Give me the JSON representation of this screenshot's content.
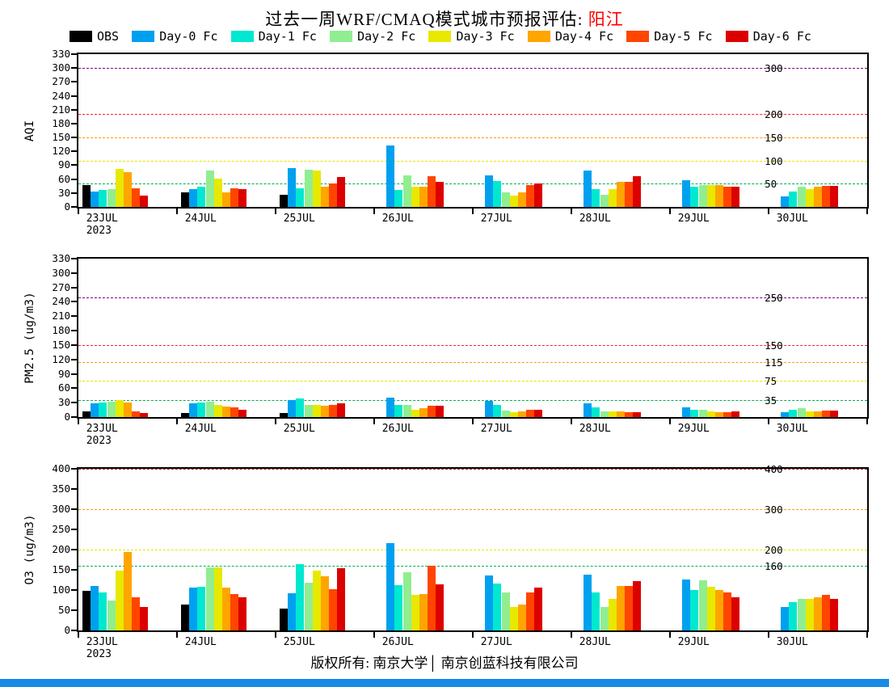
{
  "title": {
    "prefix": "过去一周WRF/CMAQ模式城市预报评估: ",
    "city": "阳江"
  },
  "footer": "版权所有: 南京大学│ 南京创蓝科技有限公司",
  "accent_colors": {
    "bottom_strip": "#1789e6",
    "city_name": "#ff0000"
  },
  "legend": [
    {
      "label": "OBS",
      "color": "#000000"
    },
    {
      "label": "Day-0 Fc",
      "color": "#00a0f0"
    },
    {
      "label": "Day-1 Fc",
      "color": "#00e8d0"
    },
    {
      "label": "Day-2 Fc",
      "color": "#90ee90"
    },
    {
      "label": "Day-3 Fc",
      "color": "#e8e800"
    },
    {
      "label": "Day-4 Fc",
      "color": "#ffa500"
    },
    {
      "label": "Day-5 Fc",
      "color": "#ff4500"
    },
    {
      "label": "Day-6 Fc",
      "color": "#dc0000"
    }
  ],
  "chart_data": [
    {
      "type": "bar",
      "title": "AQI",
      "ylabel": "AQI",
      "ylim": [
        0,
        330
      ],
      "ytick_step": 30,
      "grid": false,
      "legend_position": "top",
      "categories": [
        "23JUL\n2023",
        "24JUL",
        "25JUL",
        "26JUL",
        "27JUL",
        "28JUL",
        "29JUL",
        "30JUL"
      ],
      "series": [
        {
          "name": "OBS",
          "values": [
            48,
            32,
            26,
            null,
            null,
            null,
            null,
            null
          ]
        },
        {
          "name": "Day-0 Fc",
          "values": [
            34,
            38,
            84,
            133,
            68,
            79,
            58,
            22
          ]
        },
        {
          "name": "Day-1 Fc",
          "values": [
            36,
            44,
            41,
            36,
            56,
            38,
            44,
            34
          ]
        },
        {
          "name": "Day-2 Fc",
          "values": [
            38,
            79,
            80,
            68,
            31,
            26,
            48,
            43
          ]
        },
        {
          "name": "Day-3 Fc",
          "values": [
            82,
            62,
            79,
            43,
            24,
            38,
            48,
            39
          ]
        },
        {
          "name": "Day-4 Fc",
          "values": [
            75,
            31,
            44,
            43,
            31,
            55,
            48,
            43
          ]
        },
        {
          "name": "Day-5 Fc",
          "values": [
            41,
            40,
            51,
            67,
            48,
            55,
            44,
            46
          ]
        },
        {
          "name": "Day-6 Fc",
          "values": [
            24,
            39,
            65,
            55,
            51,
            67,
            44,
            46
          ]
        }
      ],
      "thresholds": [
        {
          "value": 50,
          "label": "50",
          "color": "#00b050"
        },
        {
          "value": 100,
          "label": "100",
          "color": "#e6e600"
        },
        {
          "value": 150,
          "label": "150",
          "color": "#ff9900"
        },
        {
          "value": 200,
          "label": "200",
          "color": "#ff2020"
        },
        {
          "value": 300,
          "label": "300",
          "color": "#800080"
        }
      ]
    },
    {
      "type": "bar",
      "title": "PM2.5",
      "ylabel": "PM2.5 (ug/m3)",
      "ylim": [
        0,
        330
      ],
      "ytick_step": 30,
      "grid": false,
      "legend_position": "top",
      "categories": [
        "23JUL\n2023",
        "24JUL",
        "25JUL",
        "26JUL",
        "27JUL",
        "28JUL",
        "29JUL",
        "30JUL"
      ],
      "series": [
        {
          "name": "OBS",
          "values": [
            12,
            8,
            8,
            null,
            null,
            null,
            null,
            null
          ]
        },
        {
          "name": "Day-0 Fc",
          "values": [
            28,
            28,
            36,
            41,
            33,
            29,
            21,
            10
          ]
        },
        {
          "name": "Day-1 Fc",
          "values": [
            30,
            31,
            38,
            26,
            26,
            21,
            16,
            15
          ]
        },
        {
          "name": "Day-2 Fc",
          "values": [
            32,
            32,
            26,
            26,
            13,
            12,
            16,
            18
          ]
        },
        {
          "name": "Day-3 Fc",
          "values": [
            35,
            25,
            26,
            16,
            10,
            12,
            12,
            12
          ]
        },
        {
          "name": "Day-4 Fc",
          "values": [
            30,
            22,
            23,
            18,
            12,
            12,
            10,
            12
          ]
        },
        {
          "name": "Day-5 Fc",
          "values": [
            12,
            20,
            26,
            23,
            16,
            10,
            10,
            13
          ]
        },
        {
          "name": "Day-6 Fc",
          "values": [
            8,
            15,
            29,
            23,
            16,
            10,
            11,
            14
          ]
        }
      ],
      "thresholds": [
        {
          "value": 35,
          "label": "35",
          "color": "#00b050"
        },
        {
          "value": 75,
          "label": "75",
          "color": "#e6e600"
        },
        {
          "value": 115,
          "label": "115",
          "color": "#ff9900"
        },
        {
          "value": 150,
          "label": "150",
          "color": "#ff2020"
        },
        {
          "value": 250,
          "label": "250",
          "color": "#800080"
        }
      ]
    },
    {
      "type": "bar",
      "title": "O3",
      "ylabel": "O3 (ug/m3)",
      "ylim": [
        0,
        400
      ],
      "ytick_step": 50,
      "grid": false,
      "legend_position": "top",
      "categories": [
        "23JUL\n2023",
        "24JUL",
        "25JUL",
        "26JUL",
        "27JUL",
        "28JUL",
        "29JUL",
        "30JUL"
      ],
      "series": [
        {
          "name": "OBS",
          "values": [
            98,
            65,
            55,
            null,
            null,
            null,
            null,
            null
          ]
        },
        {
          "name": "Day-0 Fc",
          "values": [
            110,
            106,
            92,
            216,
            137,
            139,
            127,
            59
          ]
        },
        {
          "name": "Day-1 Fc",
          "values": [
            94,
            108,
            165,
            112,
            116,
            94,
            100,
            71
          ]
        },
        {
          "name": "Day-2 Fc",
          "values": [
            75,
            157,
            118,
            145,
            94,
            59,
            125,
            78
          ]
        },
        {
          "name": "Day-3 Fc",
          "values": [
            149,
            157,
            149,
            88,
            59,
            78,
            108,
            78
          ]
        },
        {
          "name": "Day-4 Fc",
          "values": [
            194,
            106,
            135,
            90,
            65,
            110,
            100,
            82
          ]
        },
        {
          "name": "Day-5 Fc",
          "values": [
            82,
            90,
            102,
            161,
            94,
            110,
            94,
            88
          ]
        },
        {
          "name": "Day-6 Fc",
          "values": [
            59,
            82,
            155,
            114,
            106,
            122,
            82,
            78
          ]
        }
      ],
      "thresholds": [
        {
          "value": 160,
          "label": "160",
          "color": "#00b050"
        },
        {
          "value": 200,
          "label": "200",
          "color": "#e6e600"
        },
        {
          "value": 300,
          "label": "300",
          "color": "#ff9900"
        },
        {
          "value": 400,
          "label": "400",
          "color": "#c00000"
        }
      ]
    }
  ]
}
